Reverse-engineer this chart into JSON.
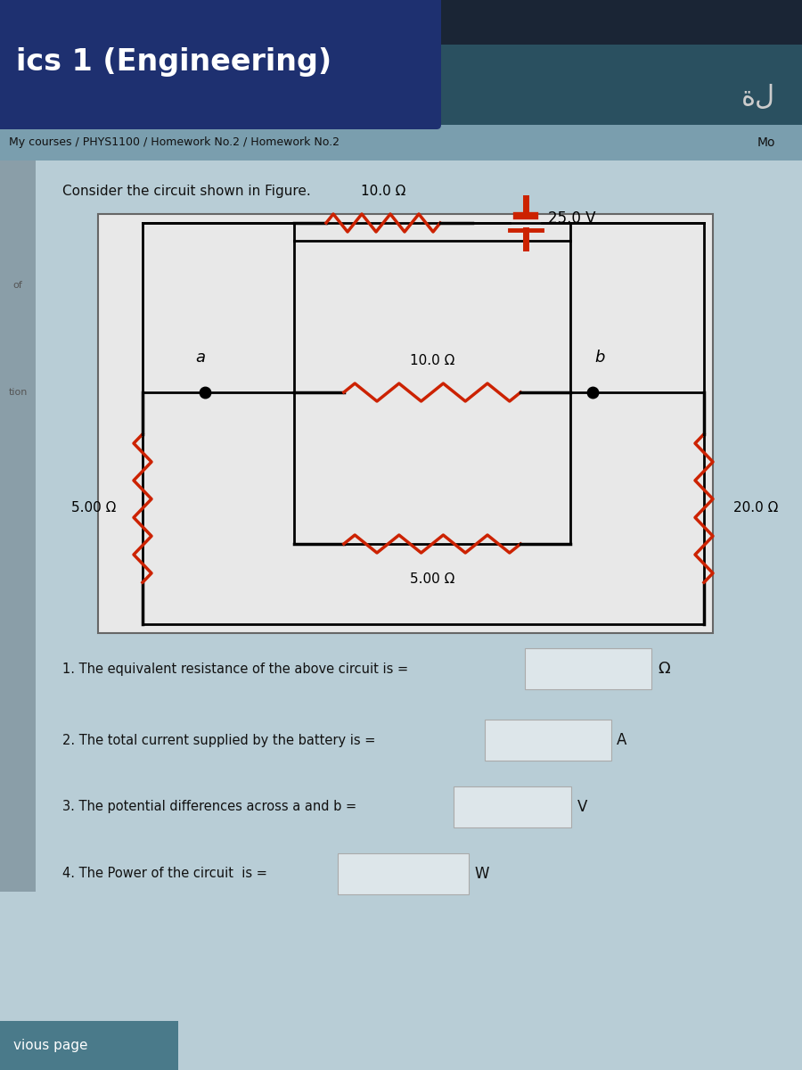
{
  "title": "ics 1 (Engineering)",
  "breadcrumb": "My courses / PHYS1100 / Homework No.2 / Homework No.2",
  "intro_text": "Consider the circuit shown in Figure.",
  "bg_header_dark": "#1e3070",
  "bg_header_teal": "#3a6878",
  "bg_breadcrumb": "#8aabba",
  "bg_main_color": "#b8cdd6",
  "bg_content_color": "#b8cdd6",
  "circuit_bg": "#f0f0f0",
  "resistor_color": "#cc2200",
  "wire_color": "#000000",
  "q1_text": "1. The equivalent resistance of the above circuit is =",
  "q2_text": "2. The total current supplied by the battery is =",
  "q3_text": "3. The potential differences across a and b =",
  "q4_text": "4. The Power of the circuit  is =",
  "q1_unit": "Ω",
  "q2_unit": "A",
  "q3_unit": "V",
  "q4_unit": "W",
  "bottom_text": "vious page",
  "mo_text": "Mo"
}
